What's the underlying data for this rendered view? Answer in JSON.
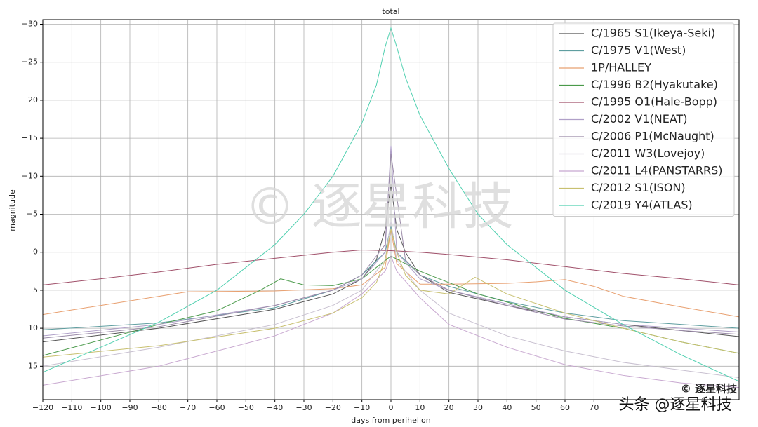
{
  "chart_data": {
    "type": "line",
    "title": "total",
    "x_label": "days from perihelion",
    "y_label": "magnitude",
    "xlim": [
      -120,
      120
    ],
    "ylim": [
      19.4,
      -30.6
    ],
    "xticks": [
      {
        "value": -120,
        "label": "−120"
      },
      {
        "value": -110,
        "label": "−110"
      },
      {
        "value": -100,
        "label": "−100"
      },
      {
        "value": -90,
        "label": "−90"
      },
      {
        "value": -80,
        "label": "−80"
      },
      {
        "value": -70,
        "label": "−70"
      },
      {
        "value": -60,
        "label": "−60"
      },
      {
        "value": -50,
        "label": "−50"
      },
      {
        "value": -40,
        "label": "−40"
      },
      {
        "value": -30,
        "label": "−30"
      },
      {
        "value": -20,
        "label": "−20"
      },
      {
        "value": -10,
        "label": "−10"
      },
      0,
      10,
      20,
      30,
      40,
      50,
      60,
      70
    ],
    "yticks": [
      {
        "value": -30,
        "label": "−30"
      },
      {
        "value": -25,
        "label": "−25"
      },
      {
        "value": -20,
        "label": "−20"
      },
      {
        "value": -15,
        "label": "−15"
      },
      {
        "value": -10,
        "label": "−10"
      },
      {
        "value": -5,
        "label": "−5"
      },
      0,
      5,
      10,
      15
    ],
    "grid": true,
    "legend": "upper right",
    "series": [
      {
        "name": "C/1965 S1(Ikeya-Seki)",
        "color": "#555555",
        "x": [
          -120,
          -80,
          -40,
          -20,
          -10,
          -5,
          -2,
          0,
          2,
          5,
          10,
          20,
          40,
          60,
          80,
          100,
          120
        ],
        "values": [
          11.8,
          10,
          7.5,
          5.5,
          3.5,
          1,
          -3,
          -9,
          -3,
          0,
          3,
          5.3,
          7,
          8.5,
          9.5,
          10.3,
          11.1
        ]
      },
      {
        "name": "C/1975 V1(West)",
        "color": "#5f9ea0",
        "x": [
          -120,
          -80,
          -40,
          -20,
          -10,
          -2,
          0,
          2,
          10,
          20,
          40,
          60,
          80,
          100,
          120
        ],
        "values": [
          10.2,
          9.3,
          7.3,
          5,
          3,
          0,
          -3.5,
          0,
          3,
          4.5,
          6.5,
          8,
          9,
          9.5,
          10
        ]
      },
      {
        "name": "1P/HALLEY",
        "color": "#e8a070",
        "x": [
          -120,
          -100,
          -80,
          -70,
          -40,
          -20,
          -10,
          -2,
          0,
          2,
          10,
          20,
          40,
          50,
          60,
          70,
          80,
          100,
          120
        ],
        "values": [
          8.2,
          7,
          5.8,
          5.2,
          5.1,
          4.8,
          4.3,
          2,
          -3,
          1.5,
          4.2,
          4.2,
          4.1,
          3.9,
          3.6,
          4.5,
          5.8,
          7.2,
          8.5
        ]
      },
      {
        "name": "C/1996 B2(Hyakutake)",
        "color": "#4a9a4a",
        "x": [
          -120,
          -80,
          -60,
          -45,
          -38,
          -30,
          -20,
          -10,
          0,
          10,
          30,
          60,
          80,
          100,
          120
        ],
        "values": [
          13.6,
          9.5,
          7.7,
          5,
          3.5,
          4.3,
          4.4,
          3.5,
          0.5,
          2.5,
          5.5,
          8.7,
          10,
          11.8,
          13.3
        ]
      },
      {
        "name": "C/1995 O1(Hale-Bopp)",
        "color": "#a0506a",
        "x": [
          -120,
          -100,
          -80,
          -60,
          -40,
          -20,
          -10,
          0,
          10,
          20,
          40,
          60,
          80,
          100,
          120
        ],
        "values": [
          4.3,
          3.5,
          2.6,
          1.6,
          0.8,
          0,
          -0.3,
          -0.2,
          0,
          0.3,
          1,
          1.9,
          2.8,
          3.5,
          4.3
        ]
      },
      {
        "name": "C/2002 V1(NEAT)",
        "color": "#b0a0c8",
        "x": [
          -120,
          -80,
          -40,
          -20,
          -10,
          -2,
          0,
          2,
          10,
          20,
          40,
          60,
          80,
          100,
          120
        ],
        "values": [
          11,
          9.5,
          7,
          5,
          3.5,
          0,
          -14,
          0,
          3.5,
          5,
          6.8,
          8.5,
          9.5,
          10,
          10.5
        ]
      },
      {
        "name": "C/2006 P1(McNaught)",
        "color": "#9a8aa8",
        "x": [
          -120,
          -80,
          -40,
          -20,
          -10,
          -2,
          0,
          5,
          10,
          20,
          40,
          60,
          80,
          100,
          120
        ],
        "values": [
          11.3,
          9.8,
          7,
          5,
          3,
          -1,
          -13,
          1,
          3,
          5,
          7,
          8.8,
          9.7,
          10.3,
          10.8
        ]
      },
      {
        "name": "C/2011 W3(Lovejoy)",
        "color": "#c8c0d0",
        "x": [
          -120,
          -80,
          -40,
          -20,
          -10,
          -2,
          0,
          2,
          10,
          20,
          40,
          60,
          80,
          100,
          120
        ],
        "values": [
          15,
          12.5,
          9.5,
          7,
          5,
          1,
          -4,
          1,
          5,
          8,
          11,
          13,
          14.5,
          15.5,
          16.5
        ]
      },
      {
        "name": "C/2011 L4(PANSTARRS)",
        "color": "#c8a8d0",
        "x": [
          -120,
          -80,
          -40,
          -20,
          -10,
          -2,
          0,
          2,
          10,
          20,
          40,
          60,
          80,
          100,
          120
        ],
        "values": [
          17.5,
          15,
          11,
          8,
          5.5,
          2.5,
          0.5,
          2.5,
          6,
          9.5,
          12.5,
          14.8,
          16.2,
          17.2,
          17.8
        ]
      },
      {
        "name": "C/2012 S1(ISON)",
        "color": "#c8c070",
        "x": [
          -120,
          -80,
          -40,
          -20,
          -10,
          -5,
          -2,
          0,
          2,
          5,
          10,
          20,
          29,
          40,
          60,
          80,
          100,
          120
        ],
        "values": [
          13.8,
          12.3,
          10,
          8,
          6,
          4,
          1,
          -3,
          0,
          3,
          5,
          5.5,
          3.3,
          5.5,
          8,
          10,
          11.8,
          13.3
        ]
      },
      {
        "name": "C/2019 Y4(ATLAS)",
        "color": "#50d0b0",
        "x": [
          -120,
          -100,
          -80,
          -60,
          -40,
          -30,
          -20,
          -10,
          -5,
          -2,
          0,
          2,
          5,
          10,
          20,
          30,
          40,
          60,
          80,
          100,
          120
        ],
        "values": [
          15.8,
          12.5,
          9.2,
          5,
          -1,
          -5,
          -10,
          -17,
          -22,
          -27,
          -29.5,
          -27,
          -23,
          -18,
          -11,
          -5,
          -1,
          5,
          9.5,
          13.5,
          17
        ]
      }
    ]
  },
  "watermark": "© 逐星科技",
  "corner_mark": "© 逐星科技",
  "credit": "头条 @逐星科技"
}
